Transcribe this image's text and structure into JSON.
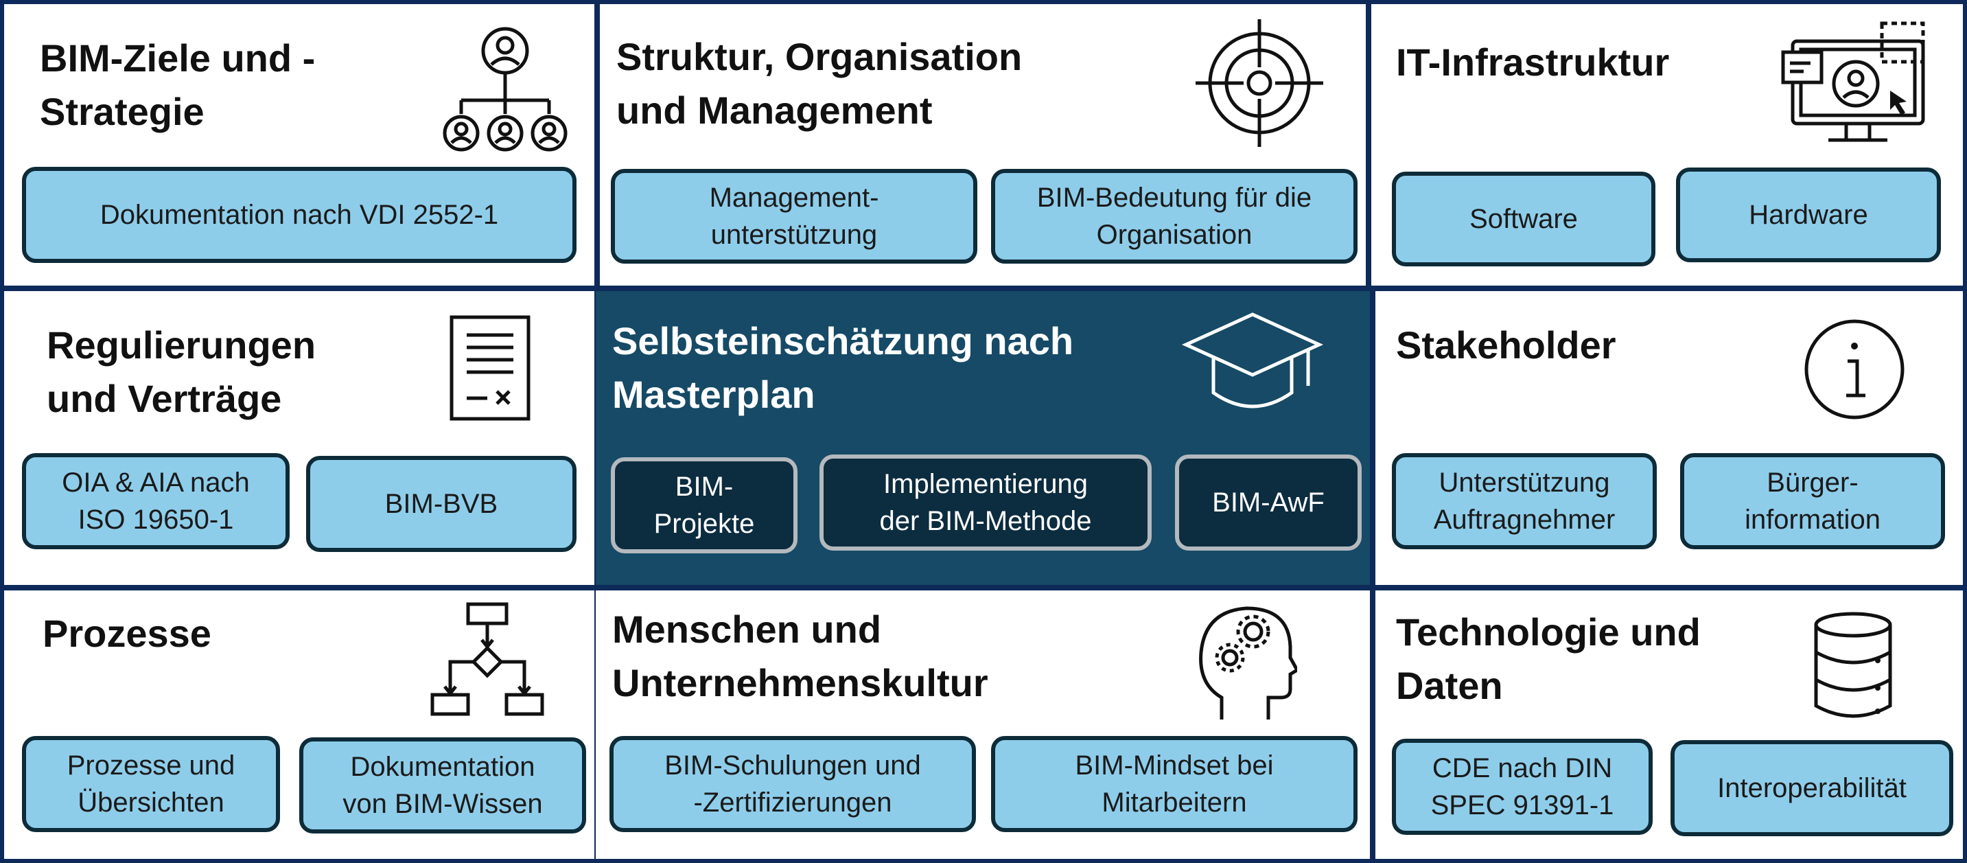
{
  "colors": {
    "frame": "#0e2a5a",
    "panel": "#ffffff",
    "center_panel": "#164a66",
    "pill_fill": "#8ecdea",
    "pill_border": "#0d2b38",
    "center_pill_fill": "#0c2c3f",
    "center_pill_border": "#b4b9be"
  },
  "panels": {
    "ziele": {
      "title": "BIM-Ziele und -\nStrategie",
      "icon": "org-hierarchy-icon",
      "items": [
        "Dokumentation nach VDI 2552-1"
      ]
    },
    "struktur": {
      "title": "Struktur, Organisation\nund Management",
      "icon": "target-icon",
      "items": [
        "Management-\nunterstützung",
        "BIM-Bedeutung für die\nOrganisation"
      ]
    },
    "it": {
      "title": "IT-Infrastruktur",
      "icon": "computer-user-icon",
      "items": [
        "Software",
        "Hardware"
      ]
    },
    "regulierungen": {
      "title": "Regulierungen\nund Verträge",
      "icon": "contract-document-icon",
      "items": [
        "OIA & AIA nach\nISO 19650-1",
        "BIM-BVB"
      ]
    },
    "selbst": {
      "title": "Selbsteinschätzung nach\nMasterplan",
      "icon": "graduation-cap-icon",
      "items": [
        "BIM-\nProjekte",
        "Implementierung\nder BIM-Methode",
        "BIM-AwF"
      ]
    },
    "stakeholder": {
      "title": "Stakeholder",
      "icon": "info-icon",
      "items": [
        "Unterstützung\nAuftragnehmer",
        "Bürger-\ninformation"
      ]
    },
    "prozesse": {
      "title": "Prozesse",
      "icon": "flowchart-icon",
      "items": [
        "Prozesse und\nÜbersichten",
        "Dokumentation\nvon BIM-Wissen"
      ]
    },
    "menschen": {
      "title": "Menschen und\nUnternehmenskultur",
      "icon": "head-gears-icon",
      "items": [
        "BIM-Schulungen und\n-Zertifizierungen",
        "BIM-Mindset bei\nMitarbeitern"
      ]
    },
    "technologie": {
      "title": "Technologie und\nDaten",
      "icon": "database-icon",
      "items": [
        "CDE nach DIN\nSPEC 91391-1",
        "Interoperabilität"
      ]
    }
  }
}
